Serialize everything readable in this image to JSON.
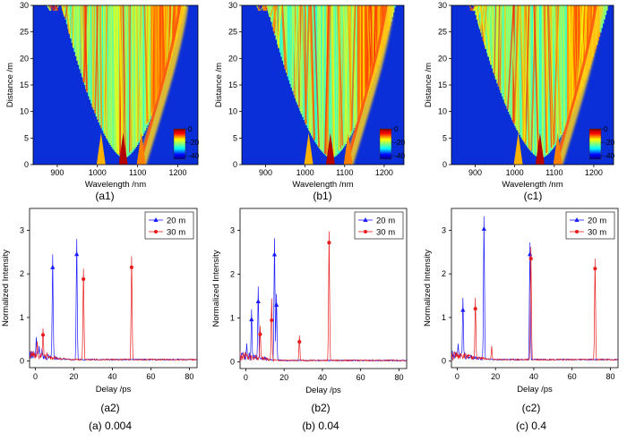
{
  "columns": [
    {
      "id": "a",
      "caption": "(a)  0.004",
      "top_label": "(a1)",
      "bottom_label": "(a2)"
    },
    {
      "id": "b",
      "caption": "(b)  0.04",
      "top_label": "(b1)",
      "bottom_label": "(b2)"
    },
    {
      "id": "c",
      "caption": "(c)  0.4",
      "top_label": "(c1)",
      "bottom_label": "(c2)"
    }
  ],
  "chart_data": [
    {
      "panel": "a1",
      "type": "heatmap",
      "xlabel": "Wavelength /nm",
      "ylabel": "Distance /m",
      "xlim": [
        840,
        1250
      ],
      "ylim": [
        0,
        30
      ],
      "xticks": [
        "900",
        "1000",
        "1100",
        "1200"
      ],
      "xtick_values": [
        900,
        1000,
        1100,
        1200
      ],
      "yticks": [
        "0",
        "5",
        "10",
        "15",
        "20",
        "25",
        "30"
      ],
      "ytick_values": [
        0,
        5,
        10,
        15,
        20,
        25,
        30
      ],
      "colorbar": {
        "ticks": [
          "0",
          "-20",
          "-40"
        ],
        "tick_values": [
          0,
          -20,
          -40
        ],
        "range": [
          -45,
          0
        ]
      },
      "center_nm": 1064,
      "spread": 0.6
    },
    {
      "panel": "b1",
      "type": "heatmap",
      "xlabel": "Wavelength /nm",
      "ylabel": "Distance /m",
      "xlim": [
        840,
        1250
      ],
      "ylim": [
        0,
        30
      ],
      "xticks": [
        "900",
        "1000",
        "1100",
        "1200"
      ],
      "xtick_values": [
        900,
        1000,
        1100,
        1200
      ],
      "yticks": [
        "0",
        "5",
        "10",
        "15",
        "20",
        "25",
        "30"
      ],
      "ytick_values": [
        0,
        5,
        10,
        15,
        20,
        25,
        30
      ],
      "colorbar": {
        "ticks": [
          "0",
          "-20",
          "-40"
        ],
        "tick_values": [
          0,
          -20,
          -40
        ],
        "range": [
          -45,
          0
        ]
      },
      "center_nm": 1064,
      "spread": 0.8
    },
    {
      "panel": "c1",
      "type": "heatmap",
      "xlabel": "Wavelength /nm",
      "ylabel": "Distance /m",
      "xlim": [
        840,
        1250
      ],
      "ylim": [
        0,
        30
      ],
      "xticks": [
        "900",
        "1000",
        "1100",
        "1200"
      ],
      "xtick_values": [
        900,
        1000,
        1100,
        1200
      ],
      "yticks": [
        "0",
        "5",
        "10",
        "15",
        "20",
        "25",
        "30"
      ],
      "ytick_values": [
        0,
        5,
        10,
        15,
        20,
        25,
        30
      ],
      "colorbar": {
        "ticks": [
          "0",
          "-20",
          "-40"
        ],
        "tick_values": [
          0,
          -20,
          -40
        ],
        "range": [
          -45,
          0
        ]
      },
      "center_nm": 1064,
      "spread": 1.0
    },
    {
      "panel": "a2",
      "type": "line",
      "xlabel": "Delay /ps",
      "ylabel": "Normalized Intensity",
      "xlim": [
        -3,
        84
      ],
      "ylim": [
        -0.15,
        3.5
      ],
      "xticks": [
        "0",
        "20",
        "40",
        "60",
        "80"
      ],
      "xtick_values": [
        0,
        20,
        40,
        60,
        80
      ],
      "yticks": [
        "0",
        "1",
        "2",
        "3"
      ],
      "ytick_values": [
        0,
        1,
        2,
        3
      ],
      "legend_position": "top-right",
      "series": [
        {
          "name": "20 m",
          "color": "#1a1aff",
          "marker": "triangle",
          "peaks": [
            [
              0.5,
              0.55
            ],
            [
              2.0,
              0.35
            ],
            [
              3.5,
              0.3
            ],
            [
              9.0,
              2.45
            ],
            [
              21.5,
              2.8
            ]
          ],
          "markers": [
            [
              9.0,
              2.15
            ],
            [
              21.5,
              2.45
            ]
          ]
        },
        {
          "name": "30 m",
          "color": "#e81c1c",
          "marker": "dot",
          "peaks": [
            [
              1.0,
              0.45
            ],
            [
              4.0,
              0.75
            ],
            [
              6.0,
              0.2
            ],
            [
              25.0,
              2.12
            ],
            [
              50.0,
              2.4
            ]
          ],
          "markers": [
            [
              4.0,
              0.6
            ],
            [
              25.0,
              1.88
            ],
            [
              50.0,
              2.15
            ]
          ]
        }
      ]
    },
    {
      "panel": "b2",
      "type": "line",
      "xlabel": "Delay /ps",
      "ylabel": "Normalized Intensity",
      "xlim": [
        -3,
        84
      ],
      "ylim": [
        -0.15,
        3.5
      ],
      "xticks": [
        "0",
        "20",
        "40",
        "60",
        "80"
      ],
      "xtick_values": [
        0,
        20,
        40,
        60,
        80
      ],
      "yticks": [
        "0",
        "1",
        "2",
        "3"
      ],
      "ytick_values": [
        0,
        1,
        2,
        3
      ],
      "legend_position": "top-right",
      "series": [
        {
          "name": "20 m",
          "color": "#1a1aff",
          "marker": "triangle",
          "peaks": [
            [
              0.5,
              0.42
            ],
            [
              3.0,
              1.2
            ],
            [
              6.5,
              1.72
            ],
            [
              15.0,
              2.82
            ],
            [
              16.0,
              1.55
            ]
          ],
          "markers": [
            [
              3.0,
              0.97
            ],
            [
              6.5,
              1.38
            ],
            [
              15.0,
              2.45
            ],
            [
              16.0,
              1.3
            ]
          ]
        },
        {
          "name": "30 m",
          "color": "#e81c1c",
          "marker": "dot",
          "peaks": [
            [
              7.5,
              0.82
            ],
            [
              13.5,
              1.45
            ],
            [
              28.0,
              0.6
            ],
            [
              43.5,
              2.98
            ]
          ],
          "markers": [
            [
              7.5,
              0.63
            ],
            [
              13.5,
              0.95
            ],
            [
              28.0,
              0.46
            ],
            [
              43.5,
              2.72
            ]
          ]
        }
      ]
    },
    {
      "panel": "c2",
      "type": "line",
      "xlabel": "Delay /ps",
      "ylabel": "Normalized Intensity",
      "xlim": [
        -3,
        84
      ],
      "ylim": [
        -0.15,
        3.5
      ],
      "xticks": [
        "0",
        "20",
        "40",
        "60",
        "80"
      ],
      "xtick_values": [
        0,
        20,
        40,
        60,
        80
      ],
      "yticks": [
        "0",
        "1",
        "2",
        "3"
      ],
      "ytick_values": [
        0,
        1,
        2,
        3
      ],
      "legend_position": "top-right",
      "series": [
        {
          "name": "20 m",
          "color": "#1a1aff",
          "marker": "triangle",
          "peaks": [
            [
              0.5,
              0.4
            ],
            [
              3.0,
              1.45
            ],
            [
              14.0,
              3.32
            ],
            [
              38.0,
              2.72
            ]
          ],
          "markers": [
            [
              3.0,
              1.17
            ],
            [
              14.0,
              3.03
            ],
            [
              38.0,
              2.45
            ]
          ]
        },
        {
          "name": "30 m",
          "color": "#e81c1c",
          "marker": "dot",
          "peaks": [
            [
              9.5,
              1.45
            ],
            [
              18.0,
              0.35
            ],
            [
              38.5,
              2.62
            ],
            [
              72.0,
              2.35
            ]
          ],
          "markers": [
            [
              9.5,
              1.2
            ],
            [
              38.5,
              2.35
            ],
            [
              72.0,
              2.12
            ]
          ]
        }
      ]
    }
  ]
}
